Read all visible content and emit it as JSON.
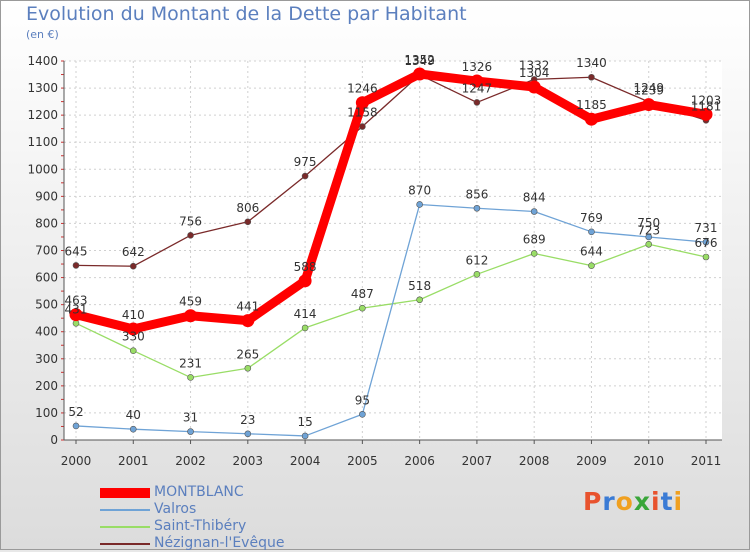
{
  "header": {
    "title": "Evolution du Montant de la Dette par Habitant",
    "subtitle": "(en €)"
  },
  "logo": {
    "text": "Proxiti",
    "colors": [
      "#e8532e",
      "#3a7bd5",
      "#f0a020",
      "#3aa63a",
      "#e8532e",
      "#3a7bd5",
      "#f0a020"
    ]
  },
  "chart_data": {
    "type": "line",
    "x": [
      "2000",
      "2001",
      "2002",
      "2003",
      "2004",
      "2005",
      "2006",
      "2007",
      "2008",
      "2009",
      "2010",
      "2011"
    ],
    "ylim": [
      0,
      1400
    ],
    "yticks": [
      0,
      100,
      200,
      300,
      400,
      500,
      600,
      700,
      800,
      900,
      1000,
      1100,
      1200,
      1300,
      1400
    ],
    "grid": true,
    "legend_position": "bottom-left",
    "series": [
      {
        "name": "MONTBLANC",
        "color": "#ff0000",
        "values": [
          463,
          410,
          459,
          441,
          588,
          1246,
          1352,
          1326,
          1304,
          1185,
          1239,
          1203
        ],
        "show_labels": true
      },
      {
        "name": "Valros",
        "color": "#6fa3d6",
        "values": [
          52,
          40,
          31,
          23,
          15,
          95,
          870,
          856,
          844,
          769,
          750,
          731
        ],
        "show_labels": true
      },
      {
        "name": "Saint-Thibéry",
        "color": "#99dd66",
        "values": [
          431,
          330,
          231,
          265,
          414,
          487,
          518,
          612,
          689,
          644,
          723,
          676
        ],
        "show_labels": true
      },
      {
        "name": "Nézignan-l'Evêque",
        "color": "#7a2a2a",
        "values": [
          645,
          642,
          756,
          806,
          975,
          1158,
          1349,
          1247,
          1332,
          1340,
          1249,
          1181
        ],
        "show_labels": true
      }
    ]
  }
}
